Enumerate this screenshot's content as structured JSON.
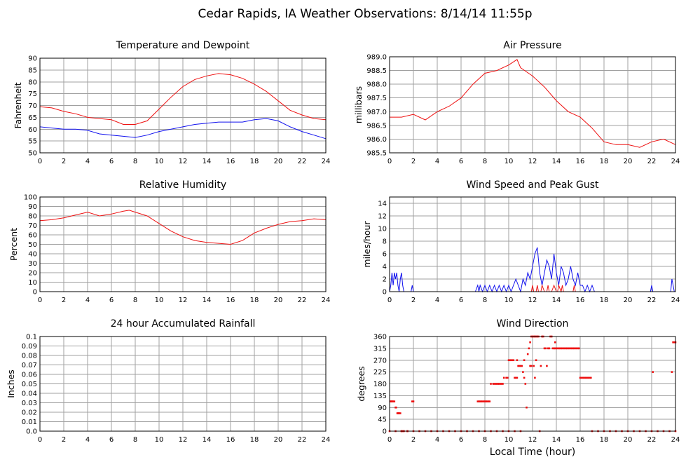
{
  "page_title": "Cedar Rapids, IA Weather Observations: 8/14/14 11:55p",
  "shared_xlabel": "Local Time (hour)",
  "colors": {
    "red": "#ee1111",
    "blue": "#1111ee",
    "grid": "#a0a0a0"
  },
  "chart_data": [
    {
      "id": "temp",
      "type": "line",
      "title": "Temperature and Dewpoint",
      "ylabel": "Fahrenheit",
      "xlim": [
        0,
        24
      ],
      "ylim": [
        50,
        90
      ],
      "xticks": [
        "0",
        "2",
        "4",
        "6",
        "8",
        "10",
        "12",
        "14",
        "16",
        "18",
        "20",
        "22",
        "24"
      ],
      "yticks": [
        "50",
        "55",
        "60",
        "65",
        "70",
        "75",
        "80",
        "85",
        "90"
      ],
      "series": [
        {
          "color": "red",
          "x": [
            0,
            1,
            2,
            3,
            4,
            5,
            6,
            7,
            8,
            9,
            10,
            11,
            12,
            13,
            14,
            15,
            16,
            17,
            18,
            19,
            20,
            21,
            22,
            23,
            24
          ],
          "values": [
            69.5,
            69,
            67.5,
            66.5,
            65,
            64.5,
            64,
            62,
            62,
            63.5,
            68.5,
            73.5,
            78,
            81,
            82.5,
            83.5,
            83,
            81.5,
            79,
            76,
            72,
            68,
            66,
            64.5,
            64
          ]
        },
        {
          "color": "blue",
          "x": [
            0,
            1,
            2,
            3,
            4,
            5,
            6,
            7,
            8,
            9,
            10,
            11,
            12,
            13,
            14,
            15,
            16,
            17,
            18,
            19,
            20,
            21,
            22,
            23,
            24
          ],
          "values": [
            61,
            60.5,
            60,
            60,
            59.5,
            58,
            57.5,
            57,
            56.5,
            57.5,
            59,
            60,
            61,
            62,
            62.5,
            63,
            63,
            63,
            64,
            64.5,
            63.5,
            61,
            59,
            57.5,
            56
          ]
        }
      ]
    },
    {
      "id": "pressure",
      "type": "line",
      "title": "Air Pressure",
      "ylabel": "millibars",
      "xlim": [
        0,
        24
      ],
      "ylim": [
        985.5,
        989.0
      ],
      "xticks": [
        "0",
        "2",
        "4",
        "6",
        "8",
        "10",
        "12",
        "14",
        "16",
        "18",
        "20",
        "22",
        "24"
      ],
      "yticks": [
        "985.5",
        "986.0",
        "986.5",
        "987.0",
        "987.5",
        "988.0",
        "988.5",
        "989.0"
      ],
      "series": [
        {
          "color": "red",
          "x": [
            0,
            1,
            2,
            3,
            4,
            5,
            6,
            7,
            8,
            9,
            10,
            10.7,
            11,
            12,
            13,
            14,
            15,
            16,
            17,
            18,
            19,
            20,
            21,
            22,
            23,
            24
          ],
          "values": [
            986.8,
            986.8,
            986.9,
            986.7,
            987.0,
            987.2,
            987.5,
            988.0,
            988.4,
            988.5,
            988.7,
            988.9,
            988.6,
            988.3,
            987.9,
            987.4,
            987.0,
            986.8,
            986.4,
            985.9,
            985.8,
            985.8,
            985.7,
            985.9,
            986.0,
            985.8
          ]
        }
      ]
    },
    {
      "id": "humidity",
      "type": "line",
      "title": "Relative Humidity",
      "ylabel": "Percent",
      "xlim": [
        0,
        24
      ],
      "ylim": [
        0,
        100
      ],
      "xticks": [
        "0",
        "2",
        "4",
        "6",
        "8",
        "10",
        "12",
        "14",
        "16",
        "18",
        "20",
        "22",
        "24"
      ],
      "yticks": [
        "0",
        "10",
        "20",
        "30",
        "40",
        "50",
        "60",
        "70",
        "80",
        "90",
        "100"
      ],
      "series": [
        {
          "color": "red",
          "x": [
            0,
            1,
            2,
            3,
            4,
            5,
            6,
            7,
            7.5,
            8,
            9,
            10,
            11,
            12,
            13,
            14,
            15,
            16,
            17,
            18,
            19,
            20,
            21,
            22,
            23,
            24
          ],
          "values": [
            75,
            76,
            78,
            81,
            84,
            80,
            82,
            85,
            86,
            84,
            80,
            72,
            64,
            58,
            54,
            52,
            51,
            50,
            54,
            62,
            67,
            71,
            74,
            75,
            77,
            76
          ]
        }
      ]
    },
    {
      "id": "wind",
      "type": "line",
      "title": "Wind Speed and Peak Gust",
      "ylabel": "miles/hour",
      "xlim": [
        0,
        24
      ],
      "ylim": [
        0,
        15
      ],
      "xticks": [
        "0",
        "2",
        "4",
        "6",
        "8",
        "10",
        "12",
        "14",
        "16",
        "18",
        "20",
        "22",
        "24"
      ],
      "yticks": [
        "0",
        "2",
        "4",
        "6",
        "8",
        "10",
        "12",
        "14"
      ],
      "series": [
        {
          "color": "blue",
          "x": [
            0,
            0.1,
            0.2,
            0.3,
            0.4,
            0.5,
            0.6,
            0.7,
            0.8,
            0.9,
            1.0,
            1.1,
            1.2,
            1.3,
            1.5,
            1.8,
            1.9,
            2.0,
            2.1,
            2.5,
            7.2,
            7.4,
            7.5,
            7.6,
            7.8,
            8.0,
            8.2,
            8.4,
            8.6,
            8.8,
            9.0,
            9.2,
            9.4,
            9.6,
            9.8,
            10.0,
            10.2,
            10.4,
            10.6,
            10.8,
            11.0,
            11.2,
            11.4,
            11.6,
            11.8,
            12.0,
            12.2,
            12.4,
            12.6,
            12.8,
            13.0,
            13.2,
            13.4,
            13.6,
            13.8,
            14.0,
            14.2,
            14.4,
            14.6,
            14.8,
            15.0,
            15.2,
            15.4,
            15.6,
            15.8,
            16.0,
            16.2,
            16.4,
            16.6,
            16.8,
            17.0,
            17.2,
            21.9,
            22.0,
            22.1,
            22.3,
            23.6,
            23.7,
            23.8,
            23.9,
            24
          ],
          "values": [
            0,
            1,
            3,
            1,
            3,
            2,
            3,
            1,
            0,
            2,
            3,
            1,
            0,
            0,
            0,
            0,
            1,
            0,
            0,
            0,
            0,
            1,
            0,
            1,
            0,
            1,
            0,
            1,
            0,
            1,
            0,
            1,
            0,
            1,
            0,
            1,
            0,
            1,
            2,
            1,
            0,
            2,
            1,
            3,
            2,
            4,
            6,
            7,
            3,
            1,
            3,
            5,
            4,
            2,
            6,
            3,
            1,
            4,
            3,
            1,
            2,
            4,
            2,
            1,
            3,
            1,
            1,
            0,
            1,
            0,
            1,
            0,
            0,
            1,
            0,
            0,
            0,
            2,
            1,
            0,
            0
          ]
        },
        {
          "color": "red",
          "x": [
            0,
            11.9,
            12.0,
            12.1,
            12.3,
            12.4,
            12.5,
            12.7,
            12.8,
            13.0,
            13.2,
            13.3,
            13.4,
            13.6,
            13.8,
            14.0,
            14.1,
            14.2,
            14.4,
            14.5,
            14.6,
            15.4,
            15.5,
            15.6,
            15.7,
            24
          ],
          "values": [
            0,
            0,
            1,
            0,
            0,
            1,
            0,
            0,
            1,
            0,
            0,
            1,
            0,
            0,
            1,
            0,
            0,
            1,
            0,
            1,
            0,
            0,
            1,
            0,
            0,
            0
          ]
        }
      ]
    },
    {
      "id": "rain",
      "type": "line",
      "title": "24 hour Accumulated Rainfall",
      "ylabel": "Inches",
      "xlim": [
        0,
        24
      ],
      "ylim": [
        0,
        0.1
      ],
      "xticks": [
        "0",
        "2",
        "4",
        "6",
        "8",
        "10",
        "12",
        "14",
        "16",
        "18",
        "20",
        "22",
        "24"
      ],
      "yticks": [
        "0.0",
        "0.01",
        "0.02",
        "0.03",
        "0.04",
        "0.05",
        "0.06",
        "0.07",
        "0.08",
        "0.09",
        "0.1"
      ],
      "series": [
        {
          "color": "red",
          "x": [
            0,
            24
          ],
          "values": [
            0,
            0
          ]
        }
      ]
    },
    {
      "id": "direction",
      "type": "scatter",
      "title": "Wind Direction",
      "ylabel": "degrees",
      "xlabel": "Local Time (hour)",
      "xlim": [
        0,
        24
      ],
      "ylim": [
        0,
        360
      ],
      "xticks": [
        "0",
        "2",
        "4",
        "6",
        "8",
        "10",
        "12",
        "14",
        "16",
        "18",
        "20",
        "22",
        "24"
      ],
      "yticks": [
        "0",
        "45",
        "90",
        "135",
        "180",
        "225",
        "270",
        "315",
        "360"
      ],
      "series": [
        {
          "color": "red",
          "x": [
            0.05,
            0.1,
            0.15,
            0.2,
            0.25,
            0.3,
            0.4,
            0.5,
            0.55,
            0.65,
            0.7,
            0.75,
            0.8,
            0.9,
            1.0,
            1.1,
            1.9,
            2.0,
            1.2,
            1.5,
            7.4,
            7.5,
            7.6,
            7.7,
            7.8,
            7.9,
            8.0,
            8.1,
            8.2,
            8.3,
            8.4,
            8.5,
            8.7,
            8.8,
            8.9,
            9.0,
            9.1,
            9.2,
            9.3,
            9.4,
            9.5,
            9.6,
            9.8,
            9.9,
            10.0,
            10.1,
            10.2,
            10.3,
            10.4,
            10.5,
            10.6,
            10.7,
            10.8,
            10.9,
            11.0,
            11.1,
            11.2,
            11.3,
            11.6,
            11.7,
            11.8,
            11.9,
            12.0,
            12.1,
            12.2,
            12.3,
            12.4,
            12.5,
            12.1,
            12.2,
            12.8,
            12.9,
            13.0,
            13.1,
            13.3,
            13.4,
            13.5,
            13.6,
            13.7,
            13.8,
            13.9,
            14.0,
            14.1,
            14.2,
            14.3,
            14.4,
            14.5,
            14.6,
            14.7,
            14.8,
            14.9,
            15.0,
            15.1,
            15.2,
            15.3,
            15.4,
            15.5,
            15.6,
            15.7,
            15.8,
            15.9,
            16.0,
            16.1,
            16.2,
            16.3,
            16.4,
            16.5,
            16.6,
            16.7,
            16.8,
            16.9,
            12.6,
            11.5,
            11.4,
            11.3,
            13.2,
            12.3,
            12.7,
            11.9,
            13.9,
            10.7,
            11.8,
            22.1,
            23.7,
            23.8,
            23.9,
            24.0
          ],
          "values": [
            113,
            113,
            113,
            113,
            113,
            113,
            113,
            90,
            90,
            68,
            68,
            68,
            68,
            68,
            0,
            0,
            113,
            113,
            0,
            0,
            113,
            113,
            113,
            113,
            113,
            113,
            113,
            113,
            113,
            113,
            113,
            180,
            180,
            180,
            180,
            180,
            180,
            180,
            180,
            180,
            180,
            203,
            203,
            203,
            270,
            270,
            270,
            270,
            270,
            203,
            203,
            203,
            248,
            248,
            248,
            248,
            225,
            203,
            293,
            315,
            338,
            360,
            360,
            360,
            360,
            360,
            360,
            360,
            248,
            203,
            360,
            360,
            315,
            315,
            315,
            315,
            360,
            360,
            315,
            315,
            315,
            315,
            315,
            315,
            315,
            315,
            315,
            315,
            315,
            315,
            315,
            315,
            315,
            315,
            315,
            315,
            315,
            315,
            315,
            315,
            315,
            203,
            203,
            203,
            203,
            203,
            203,
            203,
            203,
            203,
            203,
            0,
            90,
            180,
            270,
            248,
            270,
            248,
            248,
            338,
            270,
            248,
            225,
            225,
            338,
            338,
            338
          ]
        },
        {
          "color": "red",
          "x": [
            0,
            0.5,
            1.0,
            1.5,
            2.0,
            2.5,
            3.0,
            3.5,
            4.0,
            4.5,
            5.0,
            5.5,
            6.0,
            6.5,
            7.0,
            7.5,
            8.0,
            8.5,
            9.0,
            9.5,
            10.0,
            10.5,
            11.0,
            17.0,
            17.5,
            18.0,
            18.5,
            19.0,
            19.5,
            20.0,
            20.5,
            21.0,
            21.5,
            22.0,
            22.5,
            23.0,
            23.5,
            24.0
          ],
          "values": [
            0,
            0,
            0,
            0,
            0,
            0,
            0,
            0,
            0,
            0,
            0,
            0,
            0,
            0,
            0,
            0,
            0,
            0,
            0,
            0,
            0,
            0,
            0,
            0,
            0,
            0,
            0,
            0,
            0,
            0,
            0,
            0,
            0,
            0,
            0,
            0,
            0,
            0
          ]
        }
      ]
    }
  ]
}
